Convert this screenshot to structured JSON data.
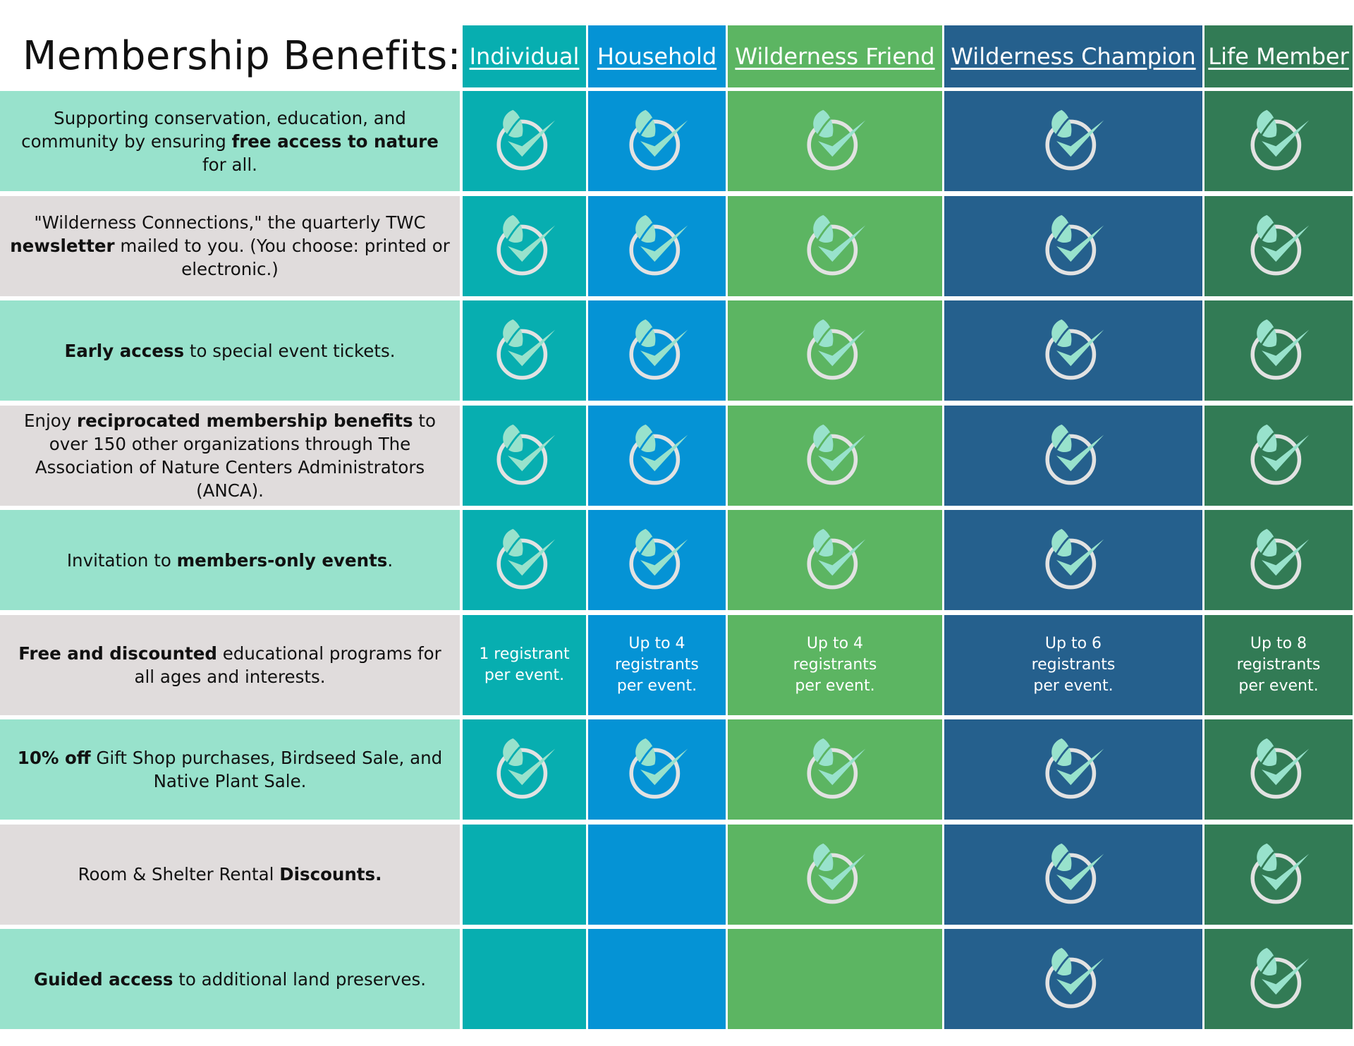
{
  "title": "Membership Benefits:",
  "columns": [
    {
      "label": "Individual",
      "color": "#07AEB0"
    },
    {
      "label": "Household",
      "color": "#0593D5"
    },
    {
      "label": "Wilderness Friend",
      "color": "#5CB562"
    },
    {
      "label": "Wilderness Champion",
      "color": "#25608D"
    },
    {
      "label": "Life Member",
      "color": "#327B55"
    }
  ],
  "row_colors": [
    "#98E2CC",
    "#E0DCDC"
  ],
  "check_icon": "leaf-check-circle-icon",
  "rows": [
    {
      "label": [
        {
          "t": "Supporting conservation, education, and community by ensuring ",
          "b": false
        },
        {
          "t": "free access to nature",
          "b": true
        },
        {
          "t": " for all.",
          "b": false
        }
      ],
      "cells": [
        "check",
        "check",
        "check",
        "check",
        "check"
      ]
    },
    {
      "label": [
        {
          "t": "\"Wilderness Connections,\" the quarterly TWC ",
          "b": false
        },
        {
          "t": "newsletter",
          "b": true
        },
        {
          "t": " mailed to you. (You choose: printed or electronic.)",
          "b": false
        }
      ],
      "cells": [
        "check",
        "check",
        "check",
        "check",
        "check"
      ]
    },
    {
      "label": [
        {
          "t": "Early access",
          "b": true
        },
        {
          "t": "  to special event tickets.",
          "b": false
        }
      ],
      "cells": [
        "check",
        "check",
        "check",
        "check",
        "check"
      ]
    },
    {
      "label": [
        {
          "t": "Enjoy ",
          "b": false
        },
        {
          "t": "reciprocated membership benefits",
          "b": true
        },
        {
          "t": " to over 150 other organizations through The Association of Nature Centers Administrators (ANCA).",
          "b": false
        }
      ],
      "cells": [
        "check",
        "check",
        "check",
        "check",
        "check"
      ]
    },
    {
      "label": [
        {
          "t": "Invitation to ",
          "b": false
        },
        {
          "t": "members-only events",
          "b": true
        },
        {
          "t": ".",
          "b": false
        }
      ],
      "cells": [
        "check",
        "check",
        "check",
        "check",
        "check"
      ]
    },
    {
      "label": [
        {
          "t": "Free and discounted",
          "b": true
        },
        {
          "t": " educational programs for all ages and interests.",
          "b": false
        }
      ],
      "cells": [
        [
          "1 registrant",
          "per event."
        ],
        [
          "Up to 4",
          "registrants",
          "per event."
        ],
        [
          "Up to 4",
          "registrants",
          "per event."
        ],
        [
          "Up to 6",
          "registrants",
          "per event."
        ],
        [
          "Up to 8",
          "registrants",
          "per event."
        ]
      ]
    },
    {
      "label": [
        {
          "t": "10% off",
          "b": true
        },
        {
          "t": " Gift Shop purchases, Birdseed Sale, and Native Plant Sale.",
          "b": false
        }
      ],
      "cells": [
        "check",
        "check",
        "check",
        "check",
        "check"
      ]
    },
    {
      "label": [
        {
          "t": "Room & Shelter Rental ",
          "b": false
        },
        {
          "t": "Discounts.",
          "b": true
        }
      ],
      "cells": [
        "",
        "",
        "check",
        "check",
        "check"
      ]
    },
    {
      "label": [
        {
          "t": "Guided access",
          "b": true
        },
        {
          "t": " to additional land preserves.",
          "b": false
        }
      ],
      "cells": [
        "",
        "",
        "",
        "check",
        "check"
      ]
    }
  ]
}
